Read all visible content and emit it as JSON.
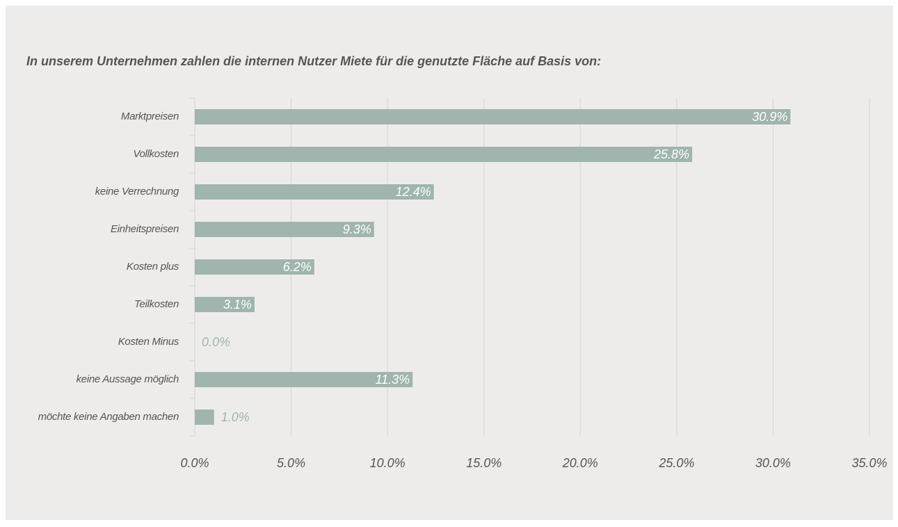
{
  "chart_data": {
    "type": "bar",
    "orientation": "horizontal",
    "title": "In unserem Unternehmen zahlen die internen Nutzer Miete für die genutzte Fläche auf Basis von:",
    "categories": [
      "Marktpreisen",
      "Vollkosten",
      "keine Verrechnung",
      "Einheitspreisen",
      "Kosten plus",
      "Teilkosten",
      "Kosten Minus",
      "keine Aussage möglich",
      "möchte keine Angaben machen"
    ],
    "values": [
      30.9,
      25.8,
      12.4,
      9.3,
      6.2,
      3.1,
      0.0,
      11.3,
      1.0
    ],
    "value_labels": [
      "30.9%",
      "25.8%",
      "12.4%",
      "9.3%",
      "6.2%",
      "3.1%",
      "0.0%",
      "11.3%",
      "1.0%"
    ],
    "color": "#9fb5ad",
    "xlim": [
      0,
      35
    ],
    "xticks": [
      {
        "value": 0,
        "label": "0.0%"
      },
      {
        "value": 5,
        "label": "5.0%"
      },
      {
        "value": 10,
        "label": "10.0%"
      },
      {
        "value": 15,
        "label": "15.0%"
      },
      {
        "value": 20,
        "label": "20.0%"
      },
      {
        "value": 25,
        "label": "25.0%"
      },
      {
        "value": 30,
        "label": "30.0%"
      },
      {
        "value": 35,
        "label": "35.0%"
      }
    ],
    "grid": true
  }
}
